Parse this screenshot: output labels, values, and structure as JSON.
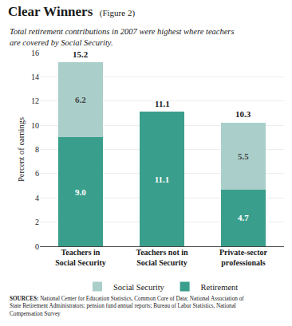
{
  "chart_data": {
    "type": "bar",
    "title": "Clear Winners",
    "title_note": "(Figure 2)",
    "subtitle": "Total retirement contributions in 2007 were highest where teachers\nare covered by Social Security.",
    "categories": [
      "Teachers in\nSocial Security",
      "Teachers not in\nSocial Security",
      "Private-sector\nprofessionals"
    ],
    "series": [
      {
        "name": "Retirement",
        "color": "#3a9e8c",
        "values": [
          9.0,
          11.1,
          4.7
        ],
        "value_labels": [
          "9.0",
          "11.1",
          "4.7"
        ]
      },
      {
        "name": "Social Security",
        "color": "#aacfcb",
        "values": [
          6.2,
          0.0,
          5.5
        ],
        "value_labels": [
          "6.2",
          null,
          "5.5"
        ]
      }
    ],
    "totals": [
      15.2,
      11.1,
      10.3
    ],
    "stacked": true,
    "data_labels": true,
    "ylabel": "Percent of earnings",
    "ylim": [
      0,
      16
    ],
    "yticks": [
      0,
      2,
      4,
      6,
      8,
      10,
      12,
      14,
      16
    ],
    "grid": true,
    "legend": "bottom",
    "sources_label": "SOURCES:",
    "sources": "National Center for Education Statistics, Common Core of Data; National Association of\nState Retirement Administrators; pension fund annual reports; Bureau of Labor Statistics, National\nCompensation Survey"
  }
}
